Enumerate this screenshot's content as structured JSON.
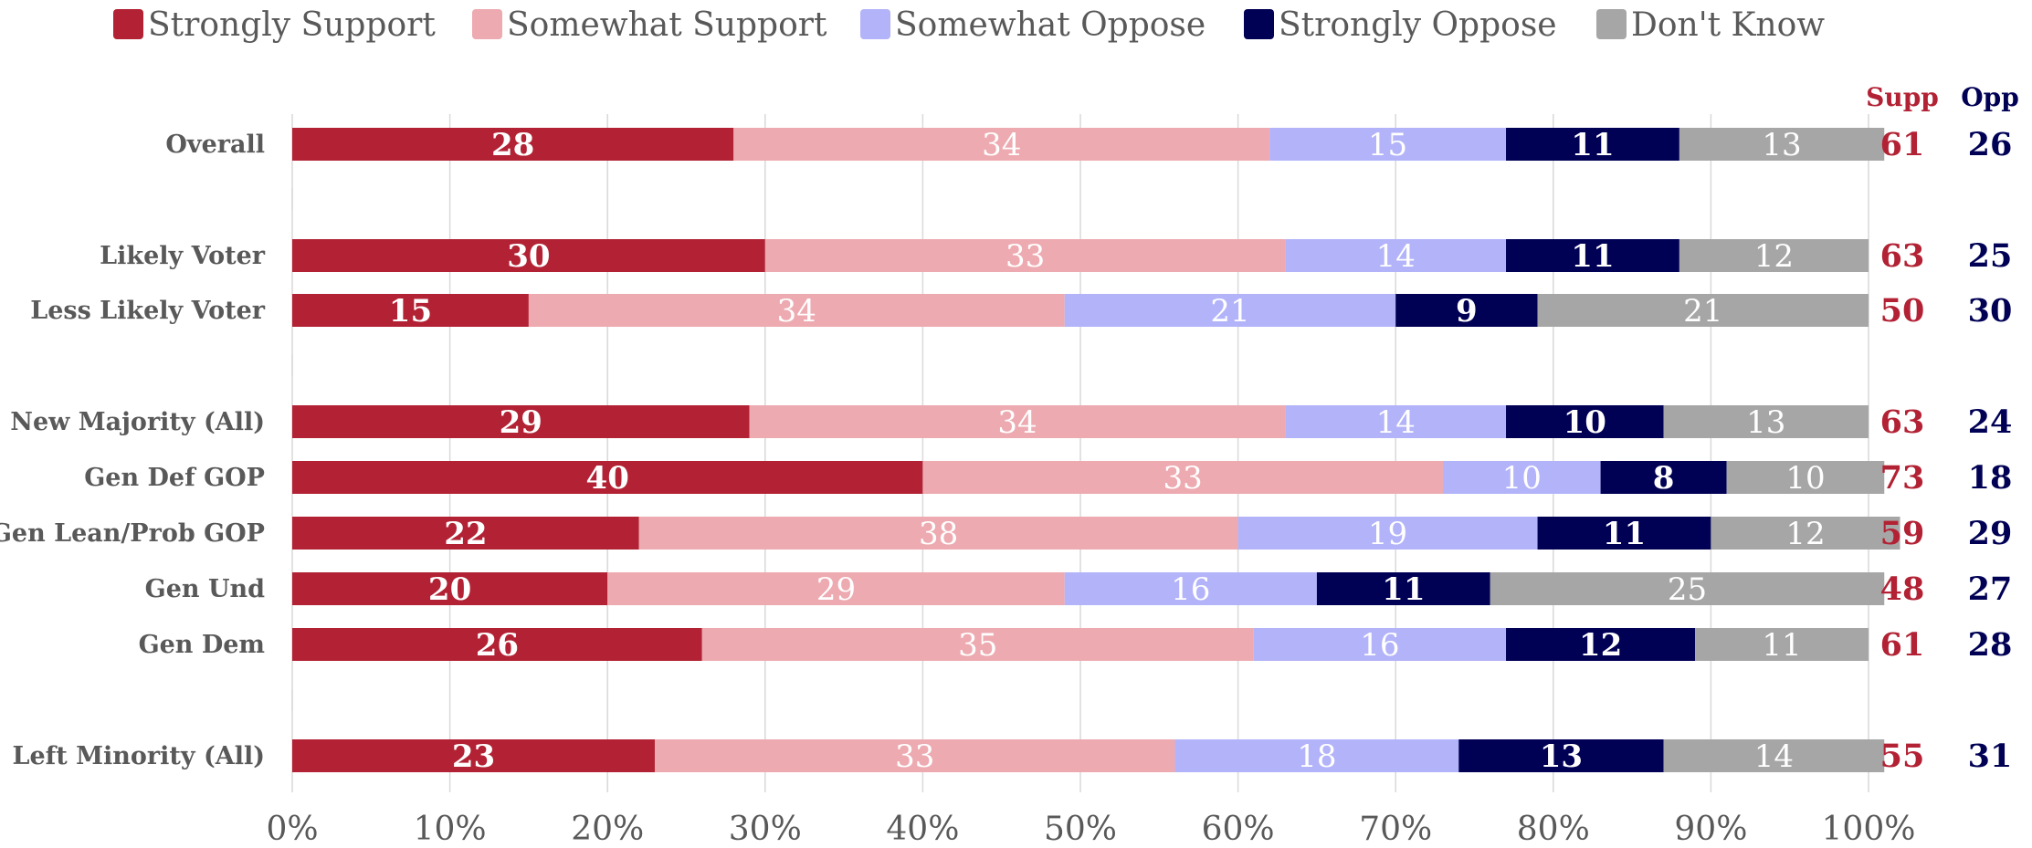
{
  "chart_data": {
    "type": "bar",
    "orientation": "horizontal",
    "stacked": true,
    "categories": [
      "Overall",
      "Likely Voter",
      "Less Likely Voter",
      "New Majority (All)",
      "Gen Def GOP",
      "Gen Lean/Prob GOP",
      "Gen Und",
      "Gen Dem",
      "Left Minority (All)"
    ],
    "series": [
      {
        "name": "Strongly Support",
        "color": "#B22234",
        "values": [
          28,
          30,
          15,
          29,
          40,
          22,
          20,
          26,
          23
        ]
      },
      {
        "name": "Somewhat Support",
        "color": "#EDAAB0",
        "values": [
          34,
          33,
          34,
          34,
          33,
          38,
          29,
          35,
          33
        ]
      },
      {
        "name": "Somewhat Oppose",
        "color": "#B3B3FA",
        "values": [
          15,
          14,
          21,
          14,
          10,
          19,
          16,
          16,
          18
        ]
      },
      {
        "name": "Strongly Oppose",
        "color": "#000055",
        "values": [
          11,
          11,
          9,
          10,
          8,
          11,
          11,
          12,
          13
        ]
      },
      {
        "name": "Don't Know",
        "color": "#A6A6A6",
        "values": [
          13,
          12,
          21,
          13,
          10,
          12,
          25,
          11,
          14
        ]
      }
    ],
    "totals": {
      "supp_label": "Supp",
      "opp_label": "Opp",
      "supp_color": "#B22234",
      "opp_color": "#000055",
      "supp": [
        61,
        63,
        50,
        63,
        73,
        59,
        48,
        61,
        55
      ],
      "opp": [
        26,
        25,
        30,
        24,
        18,
        29,
        27,
        28,
        31
      ]
    },
    "x_ticks": [
      "0%",
      "10%",
      "20%",
      "30%",
      "40%",
      "50%",
      "60%",
      "70%",
      "80%",
      "90%",
      "100%"
    ],
    "xlim": [
      0,
      100
    ],
    "grid": true,
    "legend_position": "top",
    "title": "",
    "xlabel": "",
    "ylabel": ""
  }
}
